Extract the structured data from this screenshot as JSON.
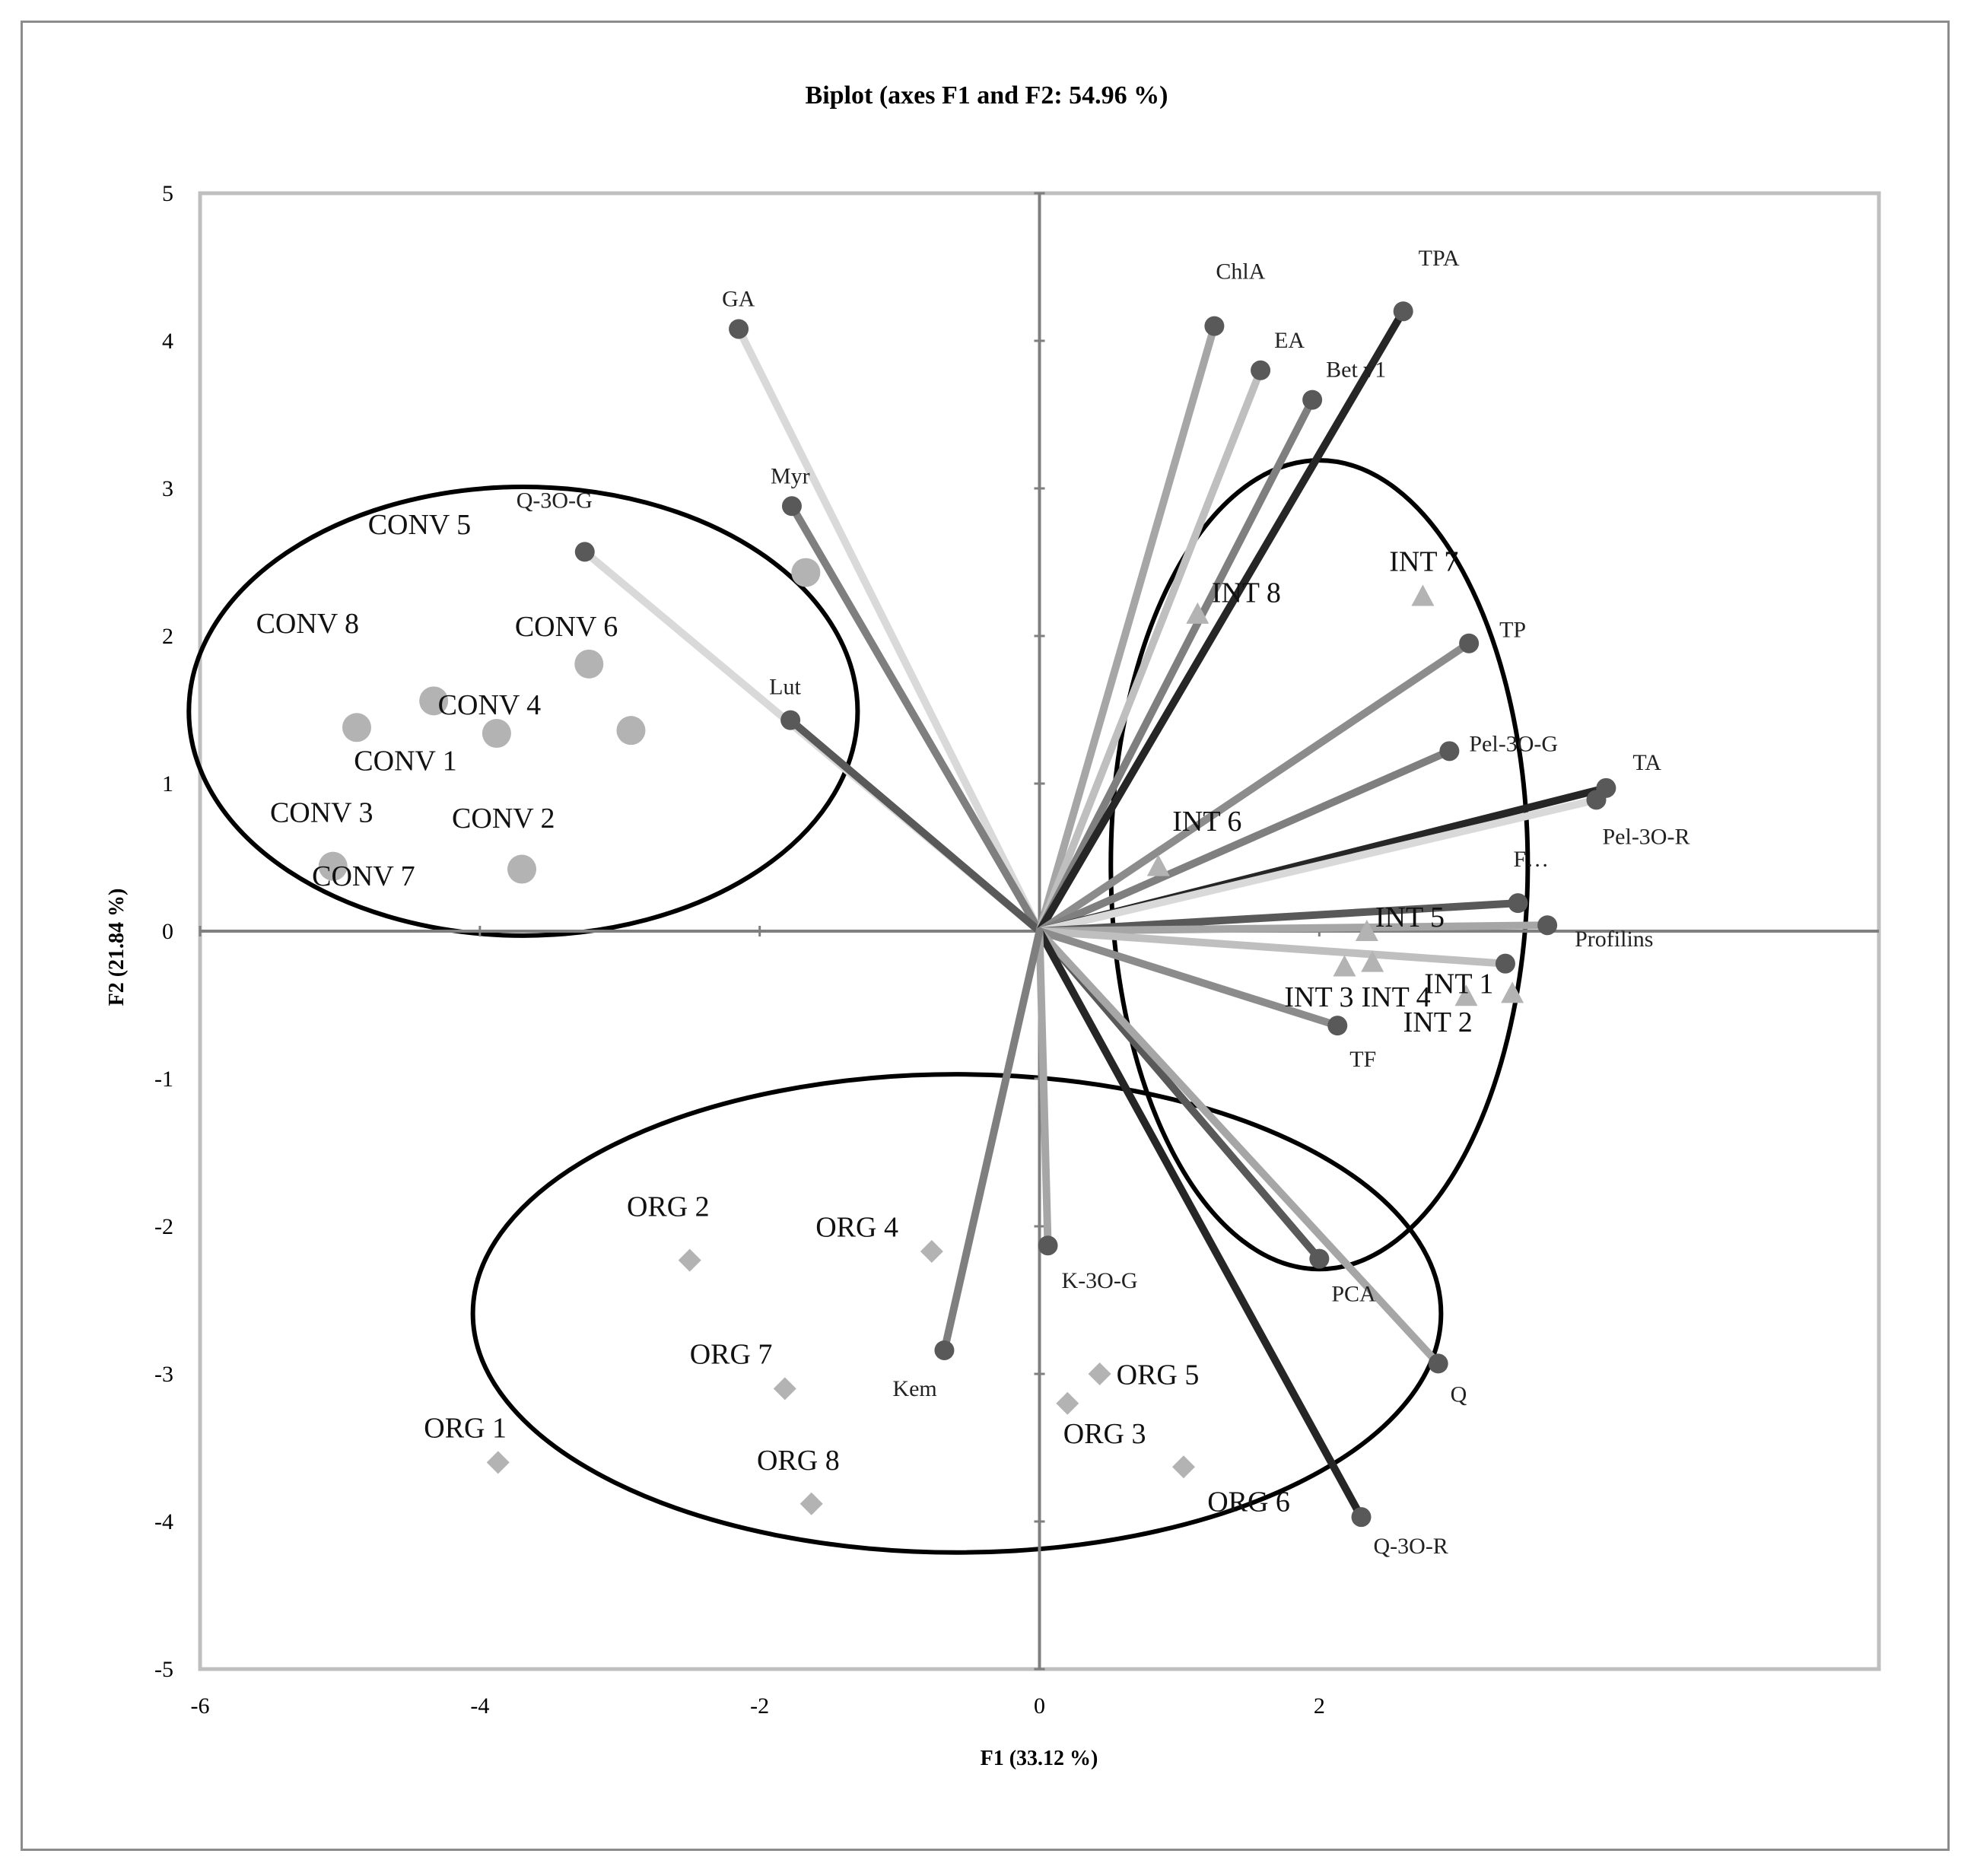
{
  "chart_data": {
    "type": "scatter",
    "subtype": "biplot",
    "title": "Biplot (axes F1 and F2: 54.96 %)",
    "xlabel": "F1 (33.12 %)",
    "ylabel": "F2 (21.84 %)",
    "xlim": [
      -6,
      6
    ],
    "ylim": [
      -5,
      5
    ],
    "x_ticks": [
      "-6",
      "-4",
      "-2",
      "0",
      "2"
    ],
    "y_ticks": [
      "-5",
      "-4",
      "-3",
      "-2",
      "-1",
      "0",
      "1",
      "2",
      "3",
      "4",
      "5"
    ],
    "grid": false,
    "variables": [
      {
        "name": "GA",
        "x": -2.15,
        "y": 4.08,
        "color": "#d9d9d9"
      },
      {
        "name": "Myr",
        "x": -1.77,
        "y": 2.88,
        "color": "#7f7f7f"
      },
      {
        "name": "Q-3O-G",
        "x": -3.25,
        "y": 2.57,
        "color": "#d9d9d9"
      },
      {
        "name": "Lut",
        "x": -1.78,
        "y": 1.43,
        "color": "#595959"
      },
      {
        "name": "ChlA",
        "x": 1.25,
        "y": 4.1,
        "color": "#a6a6a6"
      },
      {
        "name": "EA",
        "x": 1.58,
        "y": 3.8,
        "color": "#bfbfbf"
      },
      {
        "name": "Bet v1",
        "x": 1.95,
        "y": 3.6,
        "color": "#7f7f7f"
      },
      {
        "name": "TPA",
        "x": 2.6,
        "y": 4.2,
        "color": "#262626"
      },
      {
        "name": "TP",
        "x": 3.07,
        "y": 1.95,
        "color": "#8c8c8c"
      },
      {
        "name": "Pel-3O-G",
        "x": 2.93,
        "y": 1.22,
        "color": "#7f7f7f"
      },
      {
        "name": "TA",
        "x": 4.05,
        "y": 0.97,
        "color": "#262626"
      },
      {
        "name": "Pel-3O-R",
        "x": 3.98,
        "y": 0.89,
        "color": "#d9d9d9"
      },
      {
        "name": "F…",
        "x": 3.42,
        "y": 0.19,
        "color": "#595959"
      },
      {
        "name": "Profilins",
        "x": 3.63,
        "y": 0.04,
        "color": "#a6a6a6"
      },
      {
        "name": "",
        "x": 3.33,
        "y": -0.22,
        "color": "#bfbfbf"
      },
      {
        "name": "TF",
        "x": 2.13,
        "y": -0.64,
        "color": "#8c8c8c"
      },
      {
        "name": "PCA",
        "x": 2.0,
        "y": -2.22,
        "color": "#595959"
      },
      {
        "name": "Q",
        "x": 2.85,
        "y": -2.93,
        "color": "#a6a6a6"
      },
      {
        "name": "Q-3O-R",
        "x": 2.3,
        "y": -3.97,
        "color": "#262626"
      },
      {
        "name": "K-3O-G",
        "x": 0.06,
        "y": -2.13,
        "color": "#a6a6a6"
      },
      {
        "name": "Kem",
        "x": -0.68,
        "y": -2.84,
        "color": "#7f7f7f"
      }
    ],
    "observations": [
      {
        "name": "CONV 1",
        "x": -4.88,
        "y": 1.38,
        "group": "CONV"
      },
      {
        "name": "CONV 2",
        "x": -3.7,
        "y": 0.42,
        "group": "CONV"
      },
      {
        "name": "CONV 3",
        "x": -5.05,
        "y": 0.44,
        "group": "CONV"
      },
      {
        "name": "CONV 4",
        "x": -3.88,
        "y": 1.34,
        "group": "CONV"
      },
      {
        "name": "CONV 5",
        "x": -1.67,
        "y": 2.43,
        "group": "CONV"
      },
      {
        "name": "CONV 6",
        "x": -3.22,
        "y": 1.81,
        "group": "CONV"
      },
      {
        "name": "CONV 7",
        "x": -2.92,
        "y": 1.36,
        "group": "CONV"
      },
      {
        "name": "CONV 8",
        "x": -4.33,
        "y": 1.56,
        "group": "CONV"
      },
      {
        "name": "INT 1",
        "x": 3.38,
        "y": -0.43,
        "group": "INT"
      },
      {
        "name": "INT 2",
        "x": 3.05,
        "y": -0.45,
        "group": "INT"
      },
      {
        "name": "INT 3",
        "x": 2.18,
        "y": -0.25,
        "group": "INT"
      },
      {
        "name": "INT 4",
        "x": 2.38,
        "y": -0.22,
        "group": "INT"
      },
      {
        "name": "INT 5",
        "x": 2.34,
        "y": -0.01,
        "group": "INT"
      },
      {
        "name": "INT 6",
        "x": 0.85,
        "y": 0.43,
        "group": "INT"
      },
      {
        "name": "INT 7",
        "x": 2.74,
        "y": 2.26,
        "group": "INT"
      },
      {
        "name": "INT 8",
        "x": 1.13,
        "y": 2.14,
        "group": "INT"
      },
      {
        "name": "ORG 1",
        "x": -3.87,
        "y": -3.6,
        "group": "ORG"
      },
      {
        "name": "ORG 2",
        "x": -2.5,
        "y": -2.23,
        "group": "ORG"
      },
      {
        "name": "ORG 3",
        "x": 0.2,
        "y": -3.2,
        "group": "ORG"
      },
      {
        "name": "ORG 4",
        "x": -0.77,
        "y": -2.17,
        "group": "ORG"
      },
      {
        "name": "ORG 5",
        "x": 0.43,
        "y": -3.0,
        "group": "ORG"
      },
      {
        "name": "ORG 6",
        "x": 1.03,
        "y": -3.63,
        "group": "ORG"
      },
      {
        "name": "ORG 7",
        "x": -1.82,
        "y": -3.1,
        "group": "ORG"
      },
      {
        "name": "ORG 8",
        "x": -1.63,
        "y": -3.88,
        "group": "ORG"
      }
    ],
    "groups": [
      {
        "name": "CONV",
        "marker": "circle",
        "color": "#b3b3b3"
      },
      {
        "name": "INT",
        "marker": "triangle",
        "color": "#b3b3b3"
      },
      {
        "name": "ORG",
        "marker": "diamond",
        "color": "#b3b3b3"
      }
    ],
    "ellipses": [
      {
        "group": "CONV",
        "cx": -3.69,
        "cy": 1.49,
        "rx": 2.39,
        "ry": 1.52
      },
      {
        "group": "INT",
        "cx": 2.0,
        "cy": 0.45,
        "rx": 1.49,
        "ry": 2.74
      },
      {
        "group": "ORG",
        "cx": -0.59,
        "cy": -2.59,
        "rx": 3.46,
        "ry": 1.62
      }
    ],
    "colors": {
      "axis_line": "#7f7f7f",
      "plot_border": "#bfbfbf",
      "ellipse": "#000000",
      "var_point": "#595959"
    }
  }
}
